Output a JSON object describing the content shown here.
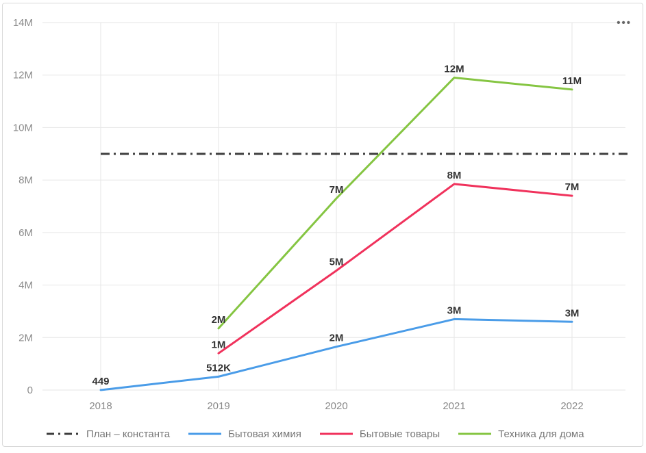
{
  "icons": {
    "more_options": "•••"
  },
  "colors": {
    "grid": "#E6E6E6",
    "axis_text": "#8A8A8A",
    "data_label": "#333333",
    "legend_text": "#777777",
    "card_border": "#D9D9D9"
  },
  "chart_data": {
    "type": "line",
    "categories": [
      "2018",
      "2019",
      "2020",
      "2021",
      "2022"
    ],
    "y_axis": {
      "tick_labels": [
        "0",
        "2M",
        "4M",
        "6M",
        "8M",
        "10M",
        "12M",
        "14M"
      ],
      "tick_values_m": [
        0,
        2,
        4,
        6,
        8,
        10,
        12,
        14
      ],
      "min_m": 0,
      "max_m": 14
    },
    "series": [
      {
        "name": "Бытовая химия",
        "color": "#4A9CE8",
        "values_m": [
          0.000449,
          0.512,
          1.65,
          2.7,
          2.6
        ],
        "point_labels": [
          "449",
          "512K",
          "2M",
          "3M",
          "3M"
        ]
      },
      {
        "name": "Бытовые товары",
        "color": "#F0325C",
        "values_m": [
          null,
          1.4,
          4.55,
          7.85,
          7.4
        ],
        "point_labels": [
          null,
          "1M",
          "5M",
          "8M",
          "7M"
        ]
      },
      {
        "name": "Техника для дома",
        "color": "#85C542",
        "values_m": [
          null,
          2.35,
          7.3,
          11.9,
          11.45
        ],
        "point_labels": [
          null,
          "2M",
          "7M",
          "12M",
          "11M"
        ]
      }
    ],
    "reference_line": {
      "name": "План – константа",
      "value_m": 9,
      "color": "#3D3D3D",
      "style": "dash-dot"
    },
    "legend": [
      "План – константа",
      "Бытовая химия",
      "Бытовые товары",
      "Техника для дома"
    ],
    "grid": true,
    "legend_position": "bottom"
  }
}
